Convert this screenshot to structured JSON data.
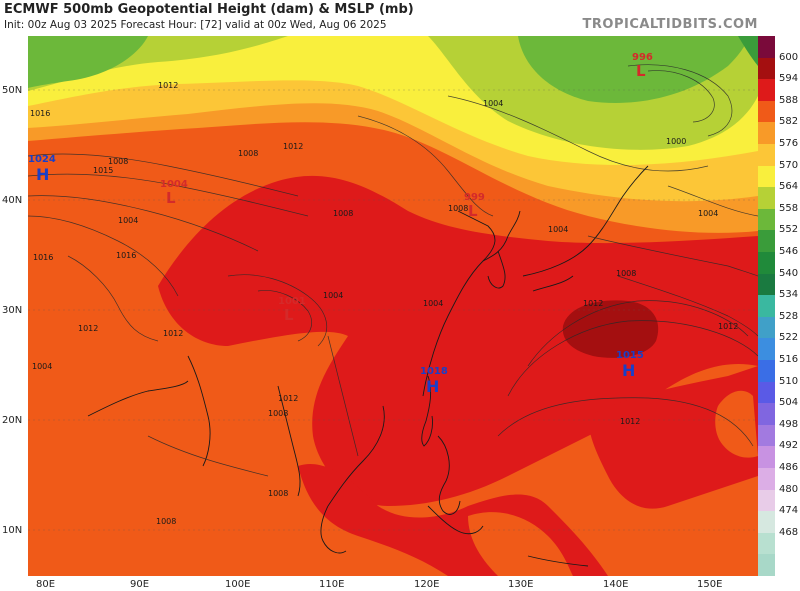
{
  "header": {
    "title": "ECMWF 500mb Geopotential Height (dam) & MSLP (mb)",
    "subtitle": "Init: 00z Aug 03 2025   Forecast Hour: [72]   valid at 00z Wed, Aug 06 2025",
    "brand": "TROPICALTIDBITS.COM"
  },
  "axes": {
    "lat_labels": [
      "50N",
      "40N",
      "30N",
      "20N",
      "10N"
    ],
    "lon_labels": [
      "80E",
      "90E",
      "100E",
      "110E",
      "120E",
      "130E",
      "140E",
      "150E"
    ]
  },
  "colorbar": {
    "levels": [
      "600",
      "594",
      "588",
      "582",
      "576",
      "570",
      "564",
      "558",
      "552",
      "546",
      "540",
      "534",
      "528",
      "522",
      "516",
      "510",
      "504",
      "498",
      "492",
      "486",
      "480",
      "474",
      "468"
    ],
    "colors": [
      "#7a0a3a",
      "#a40f10",
      "#de1a1a",
      "#f05a18",
      "#f89a28",
      "#fcc637",
      "#f9ef3d",
      "#b6d136",
      "#6cb83a",
      "#3a9c3a",
      "#208a3a",
      "#1a7a40",
      "#3ab8a0",
      "#40a0c8",
      "#3c8ee0",
      "#3a6ee6",
      "#5a5ae6",
      "#8066e0",
      "#a27ae0",
      "#c892e2",
      "#dcaee6",
      "#e8cce8",
      "#d6e8e0",
      "#b8e0d0",
      "#a8d8c8"
    ]
  },
  "isobars": {
    "labels": [
      {
        "text": "1016"
      },
      {
        "text": "1012"
      },
      {
        "text": "1008"
      },
      {
        "text": "1016"
      },
      {
        "text": "1015"
      },
      {
        "text": "1012"
      },
      {
        "text": "1004"
      },
      {
        "text": "1008"
      },
      {
        "text": "1016"
      },
      {
        "text": "1004"
      },
      {
        "text": "1008"
      },
      {
        "text": "1012"
      },
      {
        "text": "1004"
      },
      {
        "text": "1000"
      },
      {
        "text": "1004"
      },
      {
        "text": "1008"
      },
      {
        "text": "1004"
      },
      {
        "text": "1008"
      },
      {
        "text": "1004"
      },
      {
        "text": "1012"
      },
      {
        "text": "1012"
      },
      {
        "text": "1012"
      },
      {
        "text": "1008"
      },
      {
        "text": "1012"
      },
      {
        "text": "1004"
      },
      {
        "text": "1008"
      },
      {
        "text": "1008"
      },
      {
        "text": "1012"
      }
    ]
  },
  "pressure_centers": [
    {
      "type": "H",
      "value": "1024",
      "color": "#1a3fc8"
    },
    {
      "type": "L",
      "value": "1004",
      "color": "#d42a2a"
    },
    {
      "type": "L",
      "value": "1001",
      "color": "#d42a2a"
    },
    {
      "type": "L",
      "value": "999",
      "color": "#d42a2a"
    },
    {
      "type": "L",
      "value": "996",
      "color": "#d42a2a"
    },
    {
      "type": "H",
      "value": "1018",
      "color": "#1a3fc8"
    },
    {
      "type": "H",
      "value": "1015",
      "color": "#1a3fc8"
    }
  ]
}
